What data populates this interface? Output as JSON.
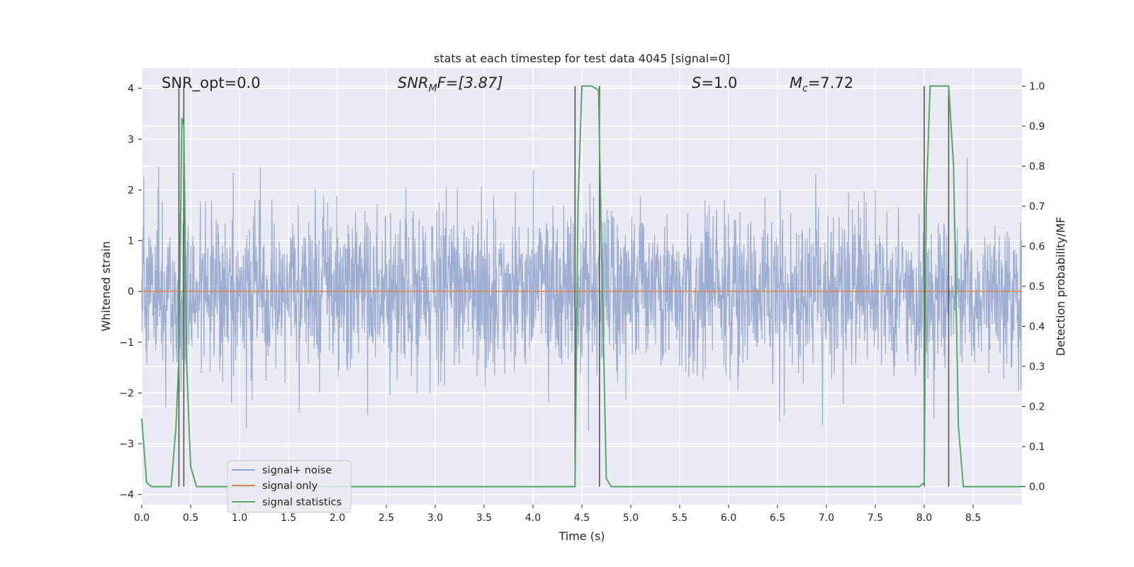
{
  "chart_data": {
    "type": "line",
    "title": "stats at each timestep for test data 4045 [signal=0]",
    "xlabel": "Time (s)",
    "ylabel": "Whitened strain",
    "ylabel_right": "Detection probability/MF",
    "xlim": [
      0,
      9.0
    ],
    "ylim": [
      -4.2,
      4.4
    ],
    "ylim_right": [
      -0.045,
      1.045
    ],
    "xticks": [
      "0.0",
      "0.5",
      "1.0",
      "1.5",
      "2.0",
      "2.5",
      "3.0",
      "3.5",
      "4.0",
      "4.5",
      "5.0",
      "5.5",
      "6.0",
      "6.5",
      "7.0",
      "7.5",
      "8.0",
      "8.5"
    ],
    "yticks": [
      "4",
      "3",
      "2",
      "1",
      "0",
      "−1",
      "−2",
      "−3",
      "−4"
    ],
    "yticks_right": [
      "1.0",
      "0.9",
      "0.8",
      "0.7",
      "0.6",
      "0.5",
      "0.4",
      "0.3",
      "0.2",
      "0.1",
      "0.0"
    ],
    "grid": true,
    "legend_placement": "lower-left",
    "annotations": {
      "snr_opt": "SNR_opt=0.0",
      "snr_mf_main": "SNR",
      "snr_mf_sub": "M",
      "snr_mf_rest": "F=[3.87]",
      "s_main": "S",
      "s_rest": "=1.0",
      "mc_main": "M",
      "mc_sub": "c",
      "mc_rest": "=7.72"
    },
    "series": [
      {
        "name": "signal+ noise",
        "color": "#8fa3cc",
        "axis": "left",
        "description_values": "noise",
        "std": 0.8
      },
      {
        "name": "signal only",
        "color": "#dd8452",
        "axis": "left",
        "x": [
          0,
          9.0
        ],
        "values": [
          0,
          0
        ]
      },
      {
        "name": "signal statistics",
        "color": "#55a868",
        "axis": "right",
        "x": [
          0.0,
          0.05,
          0.1,
          0.2,
          0.3,
          0.35,
          0.38,
          0.41,
          0.43,
          0.46,
          0.5,
          0.56,
          0.6,
          1.0,
          2.0,
          3.0,
          4.0,
          4.43,
          4.46,
          4.5,
          4.6,
          4.67,
          4.7,
          4.75,
          4.8,
          5.0,
          6.0,
          7.0,
          7.95,
          8.0,
          8.02,
          8.06,
          8.1,
          8.2,
          8.25,
          8.3,
          8.35,
          8.4,
          8.5,
          8.7,
          9.0
        ],
        "values": [
          0.17,
          0.01,
          0.0,
          0.0,
          0.0,
          0.15,
          0.32,
          0.92,
          0.9,
          0.3,
          0.05,
          0.0,
          0.0,
          0.0,
          0.0,
          0.0,
          0.0,
          0.0,
          0.7,
          1.0,
          1.0,
          0.99,
          0.6,
          0.02,
          0.0,
          0.0,
          0.0,
          0.0,
          0.0,
          0.01,
          0.7,
          1.0,
          1.0,
          1.0,
          1.0,
          0.8,
          0.15,
          0.0,
          0.0,
          0.0,
          0.0
        ]
      }
    ],
    "vertical_markers": [
      0.38,
      0.43,
      4.43,
      4.68,
      8.0,
      8.25
    ],
    "legend": [
      "signal+ noise",
      "signal only",
      "signal statistics"
    ]
  }
}
